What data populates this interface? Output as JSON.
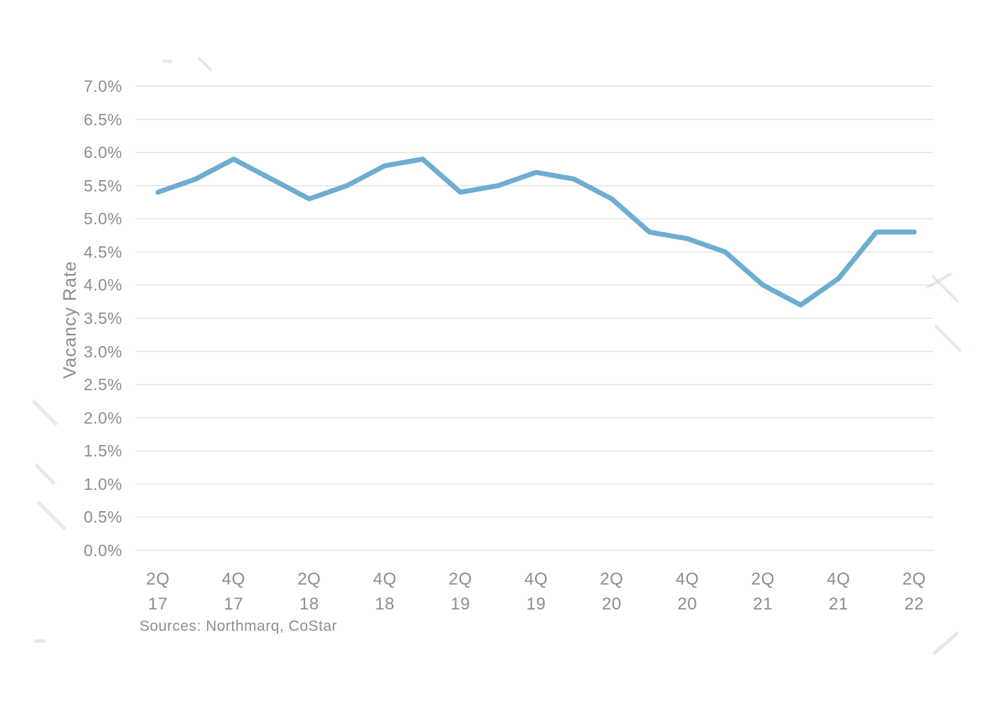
{
  "chart_data": {
    "type": "line",
    "title": "",
    "xlabel": "",
    "ylabel": "Vacancy Rate",
    "ylim": [
      0.0,
      7.0
    ],
    "ytick_step": 0.5,
    "ytick_labels": [
      "7.0%",
      "6.5%",
      "6.0%",
      "5.5%",
      "5.0%",
      "4.5%",
      "4.0%",
      "3.5%",
      "3.0%",
      "2.5%",
      "2.0%",
      "1.5%",
      "1.0%",
      "0.5%",
      "0.0%"
    ],
    "x": [
      "2Q 17",
      "3Q 17",
      "4Q 17",
      "1Q 18",
      "2Q 18",
      "3Q 18",
      "4Q 18",
      "1Q 19",
      "2Q 19",
      "3Q 19",
      "4Q 19",
      "1Q 20",
      "2Q 20",
      "3Q 20",
      "4Q 20",
      "1Q 21",
      "2Q 21",
      "3Q 21",
      "4Q 21",
      "1Q 22",
      "2Q 22"
    ],
    "xtick_labels": [
      {
        "line1": "2Q",
        "line2": "17"
      },
      {
        "line1": "4Q",
        "line2": "17"
      },
      {
        "line1": "2Q",
        "line2": "18"
      },
      {
        "line1": "4Q",
        "line2": "18"
      },
      {
        "line1": "2Q",
        "line2": "19"
      },
      {
        "line1": "4Q",
        "line2": "19"
      },
      {
        "line1": "2Q",
        "line2": "20"
      },
      {
        "line1": "4Q",
        "line2": "20"
      },
      {
        "line1": "2Q",
        "line2": "21"
      },
      {
        "line1": "4Q",
        "line2": "21"
      },
      {
        "line1": "2Q",
        "line2": "22"
      }
    ],
    "xtick_every_n_points": 2,
    "series": [
      {
        "name": "Vacancy Rate",
        "values": [
          5.4,
          5.6,
          5.9,
          5.6,
          5.3,
          5.5,
          5.8,
          5.9,
          5.4,
          5.5,
          5.7,
          5.6,
          5.3,
          4.8,
          4.7,
          4.5,
          4.0,
          3.7,
          4.1,
          4.8,
          4.8
        ]
      }
    ],
    "grid": "horizontal",
    "legend": "none"
  },
  "source_note": "Sources: Northmarq, CoStar",
  "colors": {
    "line": "#6fadd0",
    "grid": "#e3e3e3",
    "text": "#8d8d8d",
    "background": "#ffffff"
  }
}
